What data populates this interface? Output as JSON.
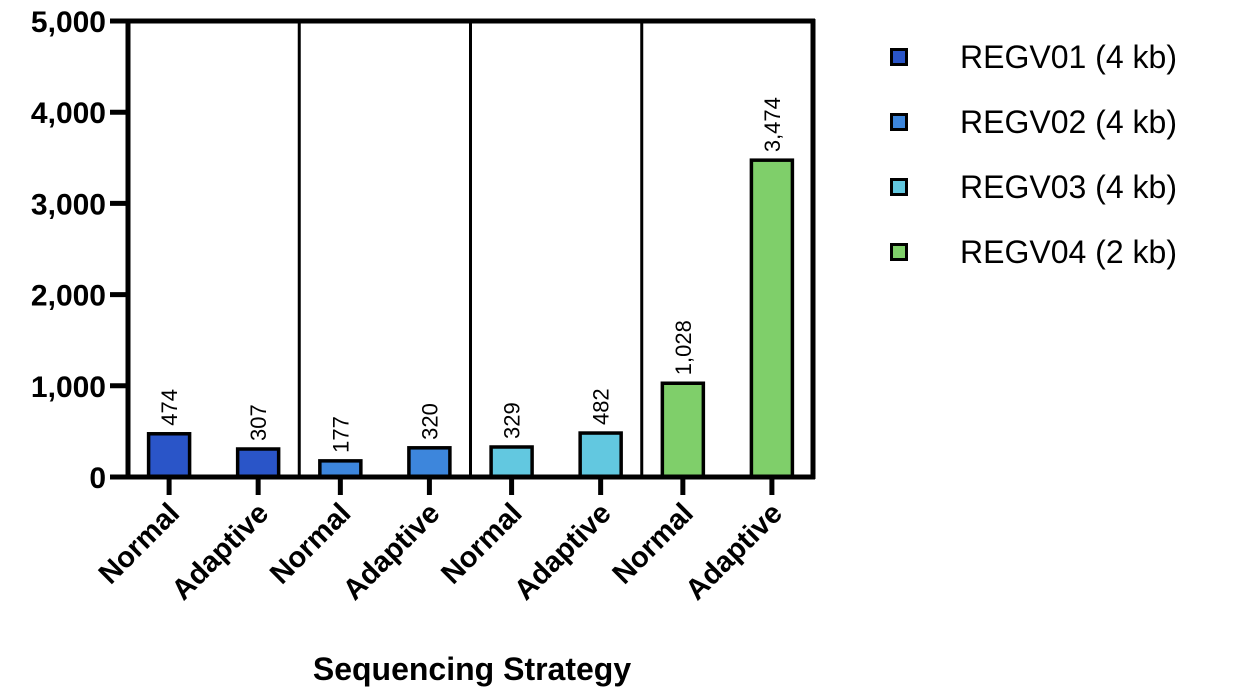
{
  "chart_data": {
    "type": "bar",
    "xlabel": "Sequencing Strategy",
    "ylabel": "",
    "ylim": [
      0,
      5000
    ],
    "yticks": [
      0,
      1000,
      2000,
      3000,
      4000,
      5000
    ],
    "ytick_labels": [
      "0",
      "1,000",
      "2,000",
      "3,000",
      "4,000",
      "5,000"
    ],
    "grid": false,
    "legend_position": "right",
    "groups": [
      {
        "name": "REGV01 (4 kb)",
        "color": "#2a55c8",
        "bars": [
          {
            "category": "Normal",
            "value": 474,
            "label": "474"
          },
          {
            "category": "Adaptive",
            "value": 307,
            "label": "307"
          }
        ]
      },
      {
        "name": "REGV02 (4 kb)",
        "color": "#3d86dc",
        "bars": [
          {
            "category": "Normal",
            "value": 177,
            "label": "177"
          },
          {
            "category": "Adaptive",
            "value": 320,
            "label": "320"
          }
        ]
      },
      {
        "name": "REGV03 (4 kb)",
        "color": "#62c8e0",
        "bars": [
          {
            "category": "Normal",
            "value": 329,
            "label": "329"
          },
          {
            "category": "Adaptive",
            "value": 482,
            "label": "482"
          }
        ]
      },
      {
        "name": "REGV04 (2 kb)",
        "color": "#7fcf6a",
        "bars": [
          {
            "category": "Normal",
            "value": 1028,
            "label": "1,028"
          },
          {
            "category": "Adaptive",
            "value": 3474,
            "label": "3,474"
          }
        ]
      }
    ]
  }
}
